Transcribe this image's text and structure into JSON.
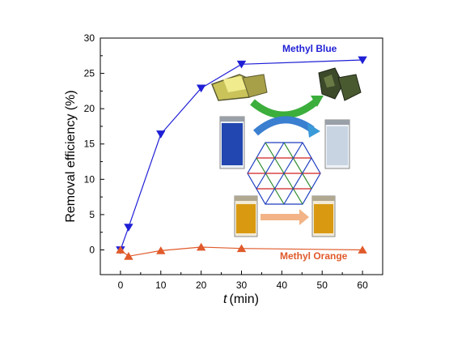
{
  "chart_data": {
    "type": "line",
    "xlabel_var": "t",
    "xlabel_unit": "(min)",
    "ylabel": "Removal efficiency (%)",
    "xlim": [
      -5,
      65
    ],
    "ylim": [
      -3.5,
      30
    ],
    "xticks": [
      0,
      10,
      20,
      30,
      40,
      50,
      60
    ],
    "yticks": [
      0,
      5,
      10,
      15,
      20,
      25,
      30
    ],
    "grid": false,
    "series": [
      {
        "name": "Methyl Blue",
        "color": "#1f1fd6",
        "marker": "triangle-down",
        "x": [
          0,
          2,
          10,
          20,
          30,
          60
        ],
        "y": [
          0,
          3.2,
          16.4,
          22.9,
          26.3,
          26.9
        ]
      },
      {
        "name": "Methyl Orange",
        "color": "#e05a2b",
        "marker": "triangle-up",
        "x": [
          0,
          2,
          10,
          20,
          30,
          60
        ],
        "y": [
          0,
          -0.9,
          -0.1,
          0.4,
          0.2,
          0.0
        ]
      }
    ]
  }
}
